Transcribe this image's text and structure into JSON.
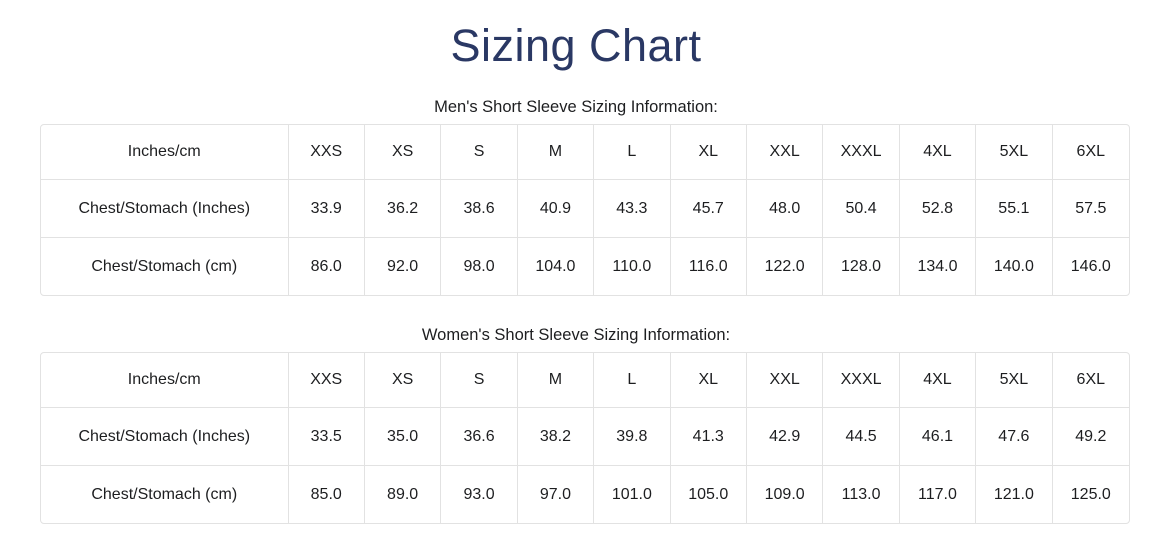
{
  "page": {
    "title": "Sizing Chart"
  },
  "colors": {
    "title_navy": "#2a3864",
    "body_text": "#1d1e20",
    "table_border": "#e2e2e2",
    "background": "#ffffff"
  },
  "tables": [
    {
      "id": "mens",
      "heading": "Men's Short Sleeve Sizing Information:",
      "columns": [
        "Inches/cm",
        "XXS",
        "XS",
        "S",
        "M",
        "L",
        "XL",
        "XXL",
        "XXXL",
        "4XL",
        "5XL",
        "6XL"
      ],
      "rows": [
        {
          "label": "Chest/Stomach (Inches)",
          "values": [
            "33.9",
            "36.2",
            "38.6",
            "40.9",
            "43.3",
            "45.7",
            "48.0",
            "50.4",
            "52.8",
            "55.1",
            "57.5"
          ]
        },
        {
          "label": "Chest/Stomach (cm)",
          "values": [
            "86.0",
            "92.0",
            "98.0",
            "104.0",
            "110.0",
            "116.0",
            "122.0",
            "128.0",
            "134.0",
            "140.0",
            "146.0"
          ]
        }
      ]
    },
    {
      "id": "womens",
      "heading": "Women's Short Sleeve Sizing Information:",
      "columns": [
        "Inches/cm",
        "XXS",
        "XS",
        "S",
        "M",
        "L",
        "XL",
        "XXL",
        "XXXL",
        "4XL",
        "5XL",
        "6XL"
      ],
      "rows": [
        {
          "label": "Chest/Stomach (Inches)",
          "values": [
            "33.5",
            "35.0",
            "36.6",
            "38.2",
            "39.8",
            "41.3",
            "42.9",
            "44.5",
            "46.1",
            "47.6",
            "49.2"
          ]
        },
        {
          "label": "Chest/Stomach (cm)",
          "values": [
            "85.0",
            "89.0",
            "93.0",
            "97.0",
            "101.0",
            "105.0",
            "109.0",
            "113.0",
            "117.0",
            "121.0",
            "125.0"
          ]
        }
      ]
    }
  ]
}
